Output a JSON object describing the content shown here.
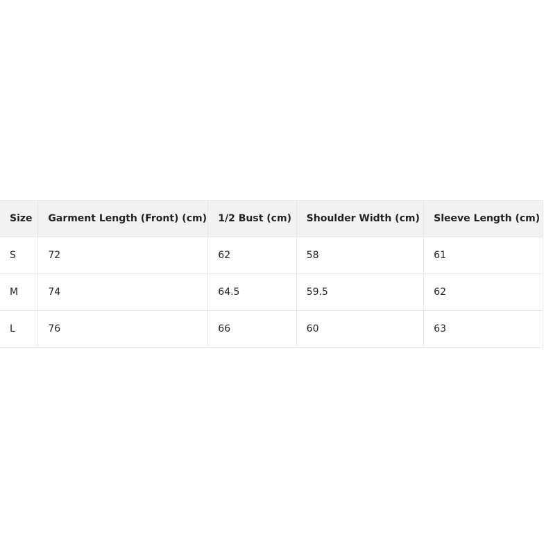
{
  "table": {
    "headers": [
      "Size",
      "Garment Length (Front) (cm)",
      "1/2 Bust (cm)",
      "Shoulder Width (cm)",
      "Sleeve Length (cm)"
    ],
    "rows": [
      [
        "S",
        "72",
        "62",
        "58",
        "61"
      ],
      [
        "M",
        "74",
        "64.5",
        "59.5",
        "62"
      ],
      [
        "L",
        "76",
        "66",
        "60",
        "63"
      ]
    ]
  }
}
